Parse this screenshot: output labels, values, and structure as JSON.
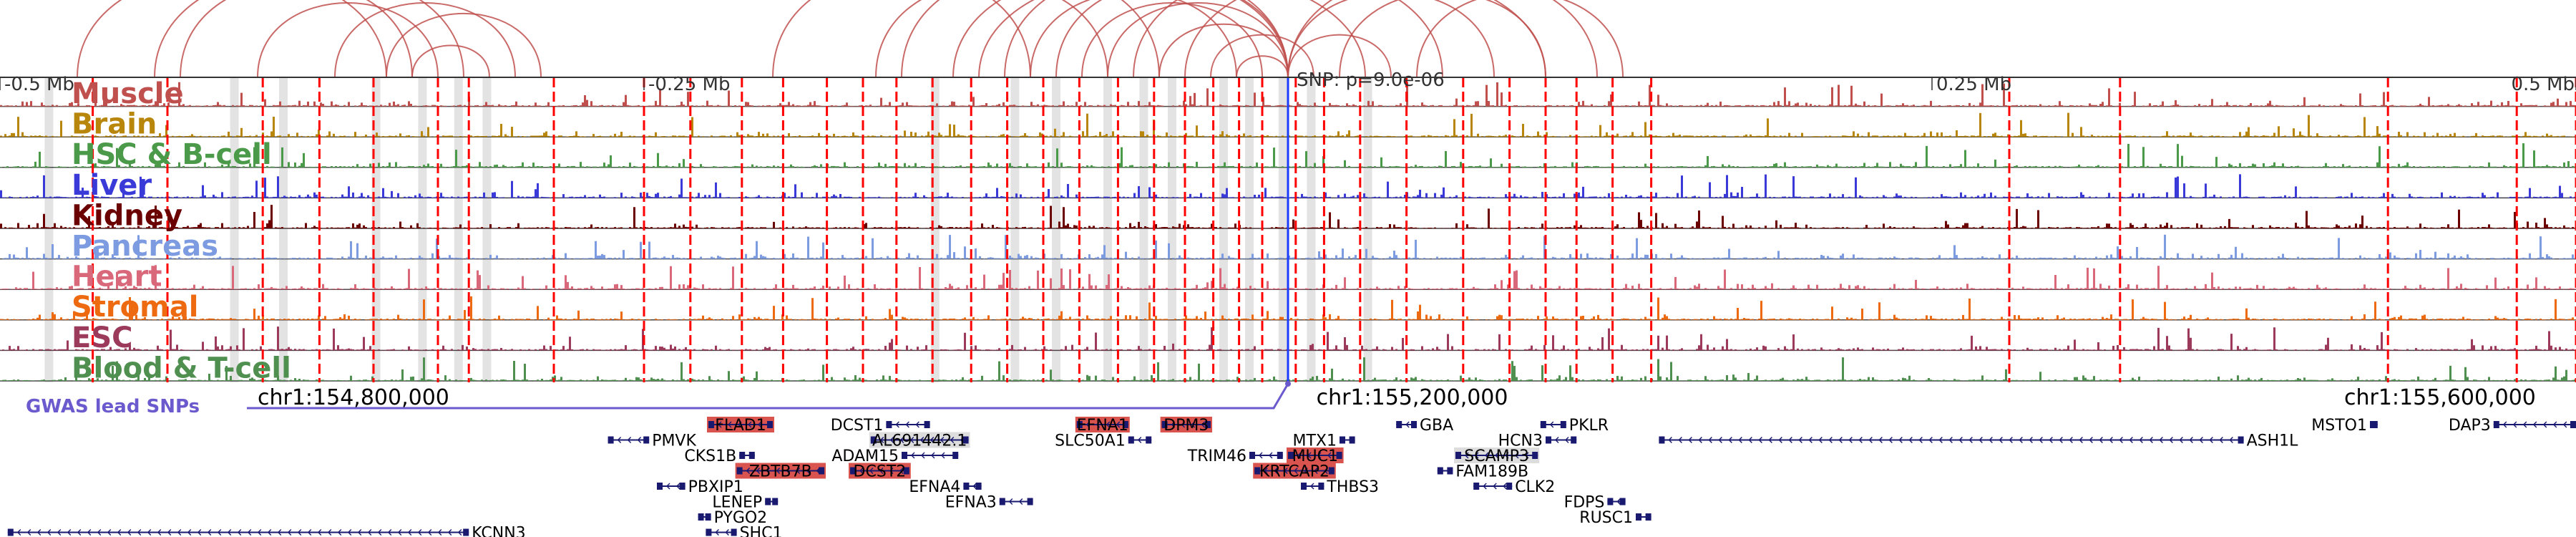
{
  "colors": {
    "arc": "#c0504d",
    "highlight_bar": "#e3e3e3",
    "snp_line": "#ff0000",
    "gene_body": "#191970",
    "gene_highlight_bg": "#d9534f",
    "gwas": "#6a5acd",
    "axis": "#333333"
  },
  "chart_data": {
    "type": "genome_browser",
    "xlim": [
      -0.5,
      0.5
    ],
    "axis_ticks": [
      {
        "pos": -0.5,
        "label": "-0.5 Mb"
      },
      {
        "pos": -0.25,
        "label": "-0.25 Mb"
      },
      {
        "pos": 0.25,
        "label": "0.25 Mb"
      },
      {
        "pos": 0.5,
        "label": "0.5 Mb"
      }
    ],
    "snp_label": "SNP: p=9.0e-06",
    "snp_pos": 0.0,
    "tracks": [
      {
        "name": "Muscle",
        "color": "#c0504d"
      },
      {
        "name": "Brain",
        "color": "#b8860b"
      },
      {
        "name": "HSC & B-cell",
        "color": "#4a9a4a"
      },
      {
        "name": "Liver",
        "color": "#3a3ad8"
      },
      {
        "name": "Kidney",
        "color": "#6b0000"
      },
      {
        "name": "Pancreas",
        "color": "#7d9be0"
      },
      {
        "name": "Heart",
        "color": "#d9687a"
      },
      {
        "name": "Stromal",
        "color": "#ee6a10"
      },
      {
        "name": "ESC",
        "color": "#9b3a5a"
      },
      {
        "name": "Blood & T-cell",
        "color": "#4f8f4f"
      }
    ],
    "highlight_regions": [
      -0.481,
      -0.409,
      -0.39,
      -0.354,
      -0.336,
      -0.322,
      -0.311,
      -0.137,
      -0.106,
      -0.09,
      -0.07,
      -0.056,
      -0.045,
      -0.025,
      -0.015,
      -0.002,
      0.009,
      0.031
    ],
    "snp_lines": [
      -0.464,
      -0.435,
      -0.398,
      -0.376,
      -0.355,
      -0.33,
      -0.318,
      -0.285,
      -0.25,
      -0.232,
      -0.212,
      -0.196,
      -0.179,
      -0.165,
      -0.152,
      -0.138,
      -0.123,
      -0.109,
      -0.095,
      -0.081,
      -0.066,
      -0.052,
      -0.04,
      -0.029,
      -0.019,
      -0.01,
      0.003,
      0.014,
      0.028,
      0.046,
      0.068,
      0.086,
      0.1,
      0.112,
      0.126,
      0.141,
      0.28,
      0.323,
      0.427,
      0.477,
      0.5
    ],
    "arcs": [
      [
        -0.47,
        -0.35
      ],
      [
        -0.43,
        -0.34
      ],
      [
        -0.4,
        -0.33
      ],
      [
        -0.37,
        -0.3
      ],
      [
        -0.34,
        -0.31
      ],
      [
        -0.44,
        -0.32
      ],
      [
        -0.35,
        -0.29
      ],
      [
        -0.13,
        0.0
      ],
      [
        -0.11,
        0.0
      ],
      [
        -0.09,
        0.0
      ],
      [
        -0.07,
        0.0
      ],
      [
        -0.05,
        0.0
      ],
      [
        -0.02,
        0.0
      ],
      [
        0.0,
        0.04
      ],
      [
        0.0,
        0.08
      ],
      [
        0.0,
        0.12
      ],
      [
        -0.1,
        -0.02
      ],
      [
        -0.08,
        -0.01
      ],
      [
        -0.15,
        -0.05
      ],
      [
        -0.2,
        -0.1
      ],
      [
        -0.12,
        0.03
      ],
      [
        -0.06,
        0.06
      ],
      [
        -0.04,
        0.1
      ],
      [
        0.02,
        0.1
      ],
      [
        0.05,
        0.13
      ],
      [
        -0.16,
        -0.07
      ],
      [
        -0.03,
        0.01
      ]
    ],
    "gwas_label": "GWAS lead SNPs",
    "coordinates": [
      {
        "pos": -0.4,
        "label": "chr1:154,800,000"
      },
      {
        "pos": 0.011,
        "label": "chr1:155,200,000"
      },
      {
        "pos": 0.41,
        "label": "chr1:155,600,000"
      }
    ],
    "genes": [
      {
        "name": "PMVK",
        "start": -0.264,
        "end": -0.248,
        "row": 1,
        "hl": false,
        "label_side": "right"
      },
      {
        "name": "CKS1B",
        "start": -0.213,
        "end": -0.207,
        "row": 2,
        "hl": false,
        "label_side": "left"
      },
      {
        "name": "PBXIP1",
        "start": -0.245,
        "end": -0.234,
        "row": 4,
        "hl": false,
        "label_side": "right"
      },
      {
        "name": "LENEP",
        "start": -0.203,
        "end": -0.198,
        "row": 5,
        "hl": false,
        "label_side": "left"
      },
      {
        "name": "PYGO2",
        "start": -0.229,
        "end": -0.224,
        "row": 6,
        "hl": false,
        "label_side": "right"
      },
      {
        "name": "SHC1",
        "start": -0.226,
        "end": -0.214,
        "row": 7,
        "hl": false,
        "label_side": "right"
      },
      {
        "name": "KCNN3",
        "start": -0.497,
        "end": -0.318,
        "row": 7,
        "hl": false,
        "label_side": "right"
      },
      {
        "name": "FLAD1",
        "start": -0.225,
        "end": -0.2,
        "row": 0,
        "hl": true,
        "label_side": "inside"
      },
      {
        "name": "ZBTB7B",
        "start": -0.214,
        "end": -0.18,
        "row": 3,
        "hl": true,
        "label_side": "inside"
      },
      {
        "name": "DCST1",
        "start": -0.156,
        "end": -0.139,
        "row": 0,
        "hl": false,
        "label_side": "left"
      },
      {
        "name": "AL691442.1",
        "start": -0.162,
        "end": -0.124,
        "row": 1,
        "hl": false,
        "label_side": "inside"
      },
      {
        "name": "ADAM15",
        "start": -0.15,
        "end": -0.128,
        "row": 2,
        "hl": false,
        "label_side": "left"
      },
      {
        "name": "DCST2",
        "start": -0.17,
        "end": -0.147,
        "row": 3,
        "hl": true,
        "label_side": "inside"
      },
      {
        "name": "EFNA4",
        "start": -0.126,
        "end": -0.119,
        "row": 4,
        "hl": false,
        "label_side": "left"
      },
      {
        "name": "EFNA3",
        "start": -0.112,
        "end": -0.099,
        "row": 5,
        "hl": false,
        "label_side": "left"
      },
      {
        "name": "EFNA1",
        "start": -0.082,
        "end": -0.062,
        "row": 0,
        "hl": true,
        "label_side": "inside"
      },
      {
        "name": "SLC50A1",
        "start": -0.062,
        "end": -0.053,
        "row": 1,
        "hl": false,
        "label_side": "left"
      },
      {
        "name": "DPM3",
        "start": -0.049,
        "end": -0.03,
        "row": 0,
        "hl": true,
        "label_side": "inside"
      },
      {
        "name": "TRIM46",
        "start": -0.015,
        "end": -0.002,
        "row": 2,
        "hl": false,
        "label_side": "left"
      },
      {
        "name": "MTX1",
        "start": 0.02,
        "end": 0.026,
        "row": 1,
        "hl": false,
        "label_side": "left"
      },
      {
        "name": "MUC1",
        "start": 0.0,
        "end": 0.021,
        "row": 2,
        "hl": true,
        "label_side": "inside"
      },
      {
        "name": "KRTCAP2",
        "start": -0.013,
        "end": 0.018,
        "row": 3,
        "hl": true,
        "label_side": "inside"
      },
      {
        "name": "THBS3",
        "start": 0.005,
        "end": 0.014,
        "row": 4,
        "hl": false,
        "label_side": "right"
      },
      {
        "name": "GBA",
        "start": 0.042,
        "end": 0.05,
        "row": 0,
        "hl": false,
        "label_side": "right"
      },
      {
        "name": "HCN3",
        "start": 0.1,
        "end": 0.112,
        "row": 1,
        "hl": false,
        "label_side": "left"
      },
      {
        "name": "SCAMP3",
        "start": 0.065,
        "end": 0.097,
        "row": 2,
        "hl": false,
        "label_side": "inside"
      },
      {
        "name": "FAM189B",
        "start": 0.058,
        "end": 0.064,
        "row": 3,
        "hl": false,
        "label_side": "right"
      },
      {
        "name": "CLK2",
        "start": 0.072,
        "end": 0.087,
        "row": 4,
        "hl": false,
        "label_side": "right"
      },
      {
        "name": "PKLR",
        "start": 0.098,
        "end": 0.108,
        "row": 0,
        "hl": false,
        "label_side": "right"
      },
      {
        "name": "FDPS",
        "start": 0.124,
        "end": 0.131,
        "row": 5,
        "hl": false,
        "label_side": "left"
      },
      {
        "name": "RUSC1",
        "start": 0.135,
        "end": 0.141,
        "row": 6,
        "hl": false,
        "label_side": "left"
      },
      {
        "name": "ASH1L",
        "start": 0.144,
        "end": 0.371,
        "row": 1,
        "hl": false,
        "label_side": "right"
      },
      {
        "name": "MSTO1",
        "start": 0.42,
        "end": 0.423,
        "row": 0,
        "hl": false,
        "label_side": "left"
      },
      {
        "name": "DAP3",
        "start": 0.468,
        "end": 0.5,
        "row": 0,
        "hl": false,
        "label_side": "left"
      }
    ]
  }
}
